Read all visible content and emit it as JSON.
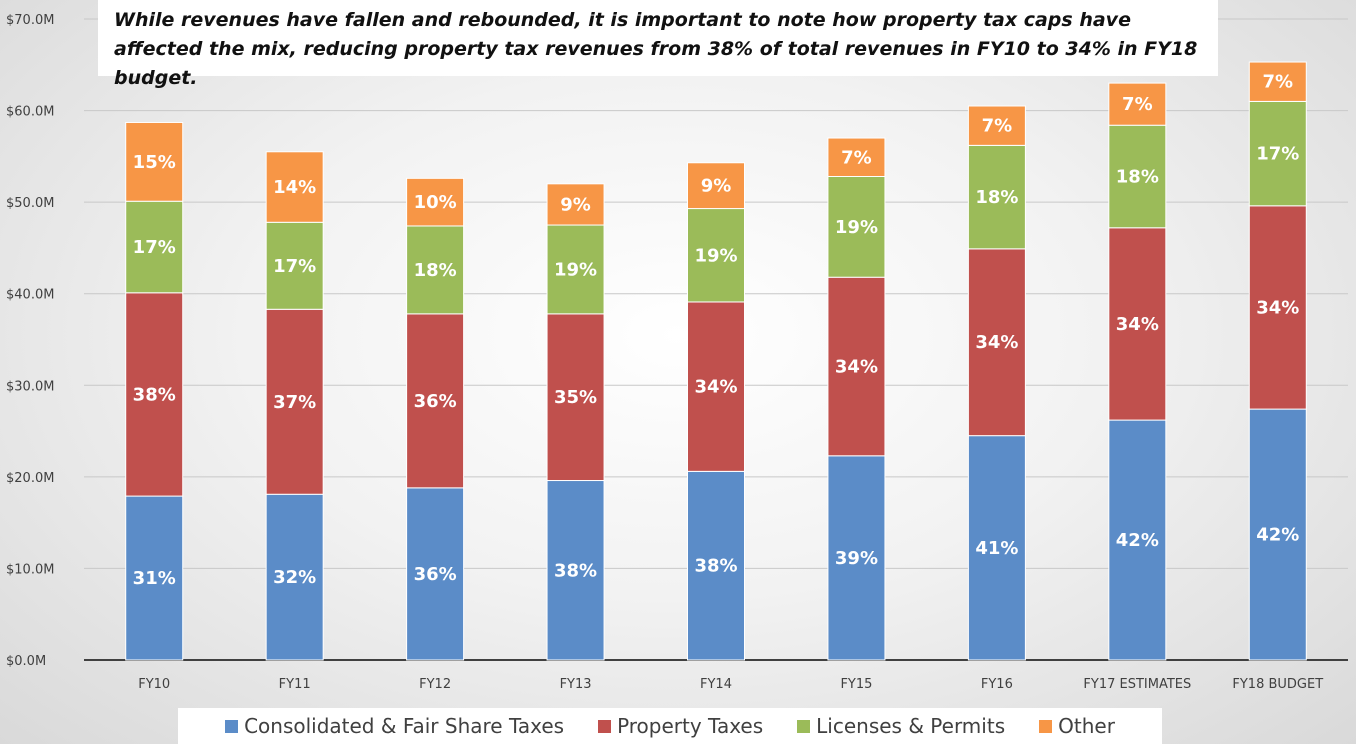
{
  "chart_data": {
    "type": "bar",
    "stacked": true,
    "title": "While revenues have fallen and rebounded, it is important to note how property tax caps have affected the mix, reducing property tax revenues from 38% of total revenues in FY10 to 34% in FY18 budget.",
    "xlabel": "",
    "ylabel": "",
    "ylim": [
      0,
      70
    ],
    "yticks": [
      "$0.0M",
      "$10.0M",
      "$20.0M",
      "$30.0M",
      "$40.0M",
      "$50.0M",
      "$60.0M",
      "$70.0M"
    ],
    "grid": true,
    "legend_position": "bottom",
    "categories": [
      "FY10",
      "FY11",
      "FY12",
      "FY13",
      "FY14",
      "FY15",
      "FY16",
      "FY17 ESTIMATES",
      "FY18 BUDGET"
    ],
    "series": [
      {
        "name": "Consolidated & Fair Share Taxes",
        "color": "#5b8cc8",
        "values": [
          17.9,
          18.1,
          18.8,
          19.6,
          20.6,
          22.3,
          24.5,
          26.2,
          27.4
        ],
        "labels": [
          "31%",
          "32%",
          "36%",
          "38%",
          "38%",
          "39%",
          "41%",
          "42%",
          "42%"
        ]
      },
      {
        "name": "Property Taxes",
        "color": "#c0504d",
        "values": [
          22.2,
          20.2,
          19.0,
          18.2,
          18.5,
          19.5,
          20.4,
          21.0,
          22.2
        ],
        "labels": [
          "38%",
          "37%",
          "36%",
          "35%",
          "34%",
          "34%",
          "34%",
          "34%",
          "34%"
        ]
      },
      {
        "name": "Licenses & Permits",
        "color": "#9bbb59",
        "values": [
          10.0,
          9.5,
          9.6,
          9.7,
          10.2,
          11.0,
          11.3,
          11.2,
          11.4
        ],
        "labels": [
          "17%",
          "17%",
          "18%",
          "19%",
          "19%",
          "19%",
          "18%",
          "18%",
          "17%"
        ]
      },
      {
        "name": "Other",
        "color": "#f79646",
        "values": [
          8.6,
          7.7,
          5.2,
          4.5,
          5.0,
          4.2,
          4.3,
          4.6,
          4.3
        ],
        "labels": [
          "15%",
          "14%",
          "10%",
          "9%",
          "9%",
          "7%",
          "7%",
          "7%",
          "7%"
        ]
      }
    ]
  }
}
